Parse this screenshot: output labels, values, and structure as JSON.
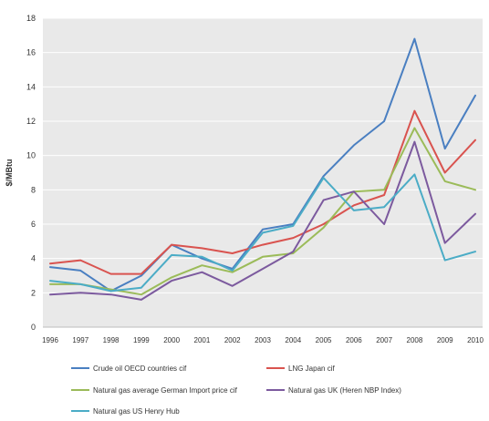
{
  "chart_data": {
    "type": "line",
    "title": "",
    "xlabel": "",
    "ylabel": "$/MBtu",
    "x": [
      "1996",
      "1997",
      "1998",
      "1999",
      "2000",
      "2001",
      "2002",
      "2003",
      "2004",
      "2005",
      "2006",
      "2007",
      "2008",
      "2009",
      "2010"
    ],
    "ylim": [
      0,
      18
    ],
    "yticks": [
      0,
      2,
      4,
      6,
      8,
      10,
      12,
      14,
      16,
      18
    ],
    "grid": "horizontal",
    "legend_position": "bottom",
    "plot_background": "#e9e9e9",
    "series": [
      {
        "name": "Crude oil OECD countries cif",
        "color": "#4a7fc1",
        "values": [
          3.5,
          3.3,
          2.1,
          3.0,
          4.8,
          4.0,
          3.4,
          5.7,
          6.0,
          8.8,
          10.6,
          12.0,
          16.8,
          10.4,
          13.5
        ]
      },
      {
        "name": "LNG Japan cif",
        "color": "#d9534f",
        "values": [
          3.7,
          3.9,
          3.1,
          3.1,
          4.8,
          4.6,
          4.3,
          4.8,
          5.2,
          6.0,
          7.1,
          7.7,
          12.6,
          9.0,
          10.9
        ]
      },
      {
        "name": "Natural gas average German Import price cif",
        "color": "#9bbb59",
        "values": [
          2.5,
          2.5,
          2.2,
          1.9,
          2.9,
          3.6,
          3.2,
          4.1,
          4.3,
          5.8,
          7.9,
          8.0,
          11.6,
          8.5,
          8.0
        ]
      },
      {
        "name": "Natural gas UK (Heren NBP Index)",
        "color": "#7c5a9e",
        "values": [
          1.9,
          2.0,
          1.9,
          1.6,
          2.7,
          3.2,
          2.4,
          3.4,
          4.4,
          7.4,
          7.9,
          6.0,
          10.8,
          4.9,
          6.6
        ]
      },
      {
        "name": "Natural gas US Henry Hub",
        "color": "#4bacc6",
        "values": [
          2.7,
          2.5,
          2.1,
          2.3,
          4.2,
          4.1,
          3.3,
          5.5,
          5.9,
          8.7,
          6.8,
          7.0,
          8.9,
          3.9,
          4.4
        ]
      }
    ]
  }
}
